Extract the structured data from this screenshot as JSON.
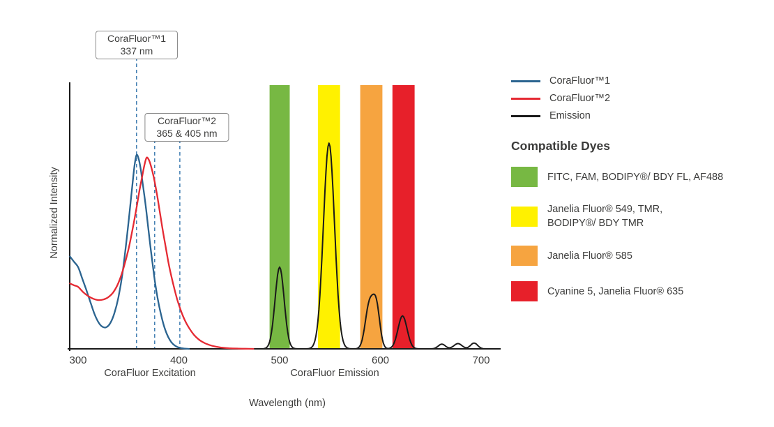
{
  "chart_data": {
    "type": "line",
    "title": "",
    "xlabel": "Wavelength (nm)",
    "ylabel": "Normalized Intensity",
    "x_ticks": [
      300,
      400,
      500,
      600,
      700
    ],
    "x_range_nm": [
      292,
      710
    ],
    "y_range": [
      0,
      1
    ],
    "grid": false,
    "axis_color": "#1A1A1A",
    "annotation_line_color": "#3E7CB1",
    "x_sublabels": {
      "excitation": "CoraFluor Excitation",
      "emission": "CoraFluor Emission"
    },
    "annotations": [
      {
        "title": "CoraFluor™1",
        "value": "337 nm",
        "lines_nm": [
          358
        ]
      },
      {
        "title": "CoraFluor™2",
        "value": "365 & 405 nm",
        "lines_nm": [
          376,
          401
        ]
      }
    ],
    "bands": [
      {
        "name": "green",
        "color": "#77B843",
        "from_nm": 490,
        "to_nm": 510
      },
      {
        "name": "yellow",
        "color": "#FFF100",
        "from_nm": 538,
        "to_nm": 560
      },
      {
        "name": "orange",
        "color": "#F6A440",
        "from_nm": 580,
        "to_nm": 602
      },
      {
        "name": "red",
        "color": "#E7202A",
        "from_nm": 612,
        "to_nm": 634
      }
    ],
    "series": [
      {
        "key": "corafluor1",
        "name": "CoraFluor™1",
        "color": "#2B6490",
        "points": [
          [
            292,
            0.35
          ],
          [
            296,
            0.33
          ],
          [
            300,
            0.31
          ],
          [
            304,
            0.268
          ],
          [
            308,
            0.225
          ],
          [
            312,
            0.18
          ],
          [
            316,
            0.135
          ],
          [
            320,
            0.102
          ],
          [
            324,
            0.084
          ],
          [
            328,
            0.082
          ],
          [
            332,
            0.098
          ],
          [
            336,
            0.135
          ],
          [
            340,
            0.195
          ],
          [
            344,
            0.285
          ],
          [
            348,
            0.41
          ],
          [
            351,
            0.515
          ],
          [
            354,
            0.625
          ],
          [
            356,
            0.695
          ],
          [
            358,
            0.735
          ],
          [
            360,
            0.722
          ],
          [
            362,
            0.685
          ],
          [
            364,
            0.63
          ],
          [
            367,
            0.545
          ],
          [
            370,
            0.445
          ],
          [
            373,
            0.35
          ],
          [
            376,
            0.262
          ],
          [
            379,
            0.19
          ],
          [
            382,
            0.135
          ],
          [
            385,
            0.09
          ],
          [
            388,
            0.057
          ],
          [
            391,
            0.034
          ],
          [
            394,
            0.019
          ],
          [
            398,
            0.008
          ],
          [
            402,
            0.003
          ],
          [
            406,
            0.001
          ],
          [
            410,
            0
          ]
        ]
      },
      {
        "key": "corafluor2",
        "name": "CoraFluor™2",
        "color": "#E52A33",
        "points": [
          [
            292,
            0.248
          ],
          [
            296,
            0.241
          ],
          [
            300,
            0.235
          ],
          [
            305,
            0.215
          ],
          [
            310,
            0.2
          ],
          [
            315,
            0.19
          ],
          [
            320,
            0.185
          ],
          [
            325,
            0.187
          ],
          [
            330,
            0.196
          ],
          [
            335,
            0.215
          ],
          [
            340,
            0.25
          ],
          [
            345,
            0.305
          ],
          [
            350,
            0.378
          ],
          [
            354,
            0.452
          ],
          [
            358,
            0.535
          ],
          [
            361,
            0.602
          ],
          [
            364,
            0.662
          ],
          [
            366,
            0.7
          ],
          [
            368,
            0.725
          ],
          [
            370,
            0.718
          ],
          [
            372,
            0.698
          ],
          [
            375,
            0.652
          ],
          [
            378,
            0.592
          ],
          [
            381,
            0.522
          ],
          [
            384,
            0.45
          ],
          [
            387,
            0.385
          ],
          [
            390,
            0.32
          ],
          [
            394,
            0.252
          ],
          [
            398,
            0.192
          ],
          [
            402,
            0.145
          ],
          [
            406,
            0.108
          ],
          [
            410,
            0.08
          ],
          [
            415,
            0.053
          ],
          [
            420,
            0.035
          ],
          [
            425,
            0.023
          ],
          [
            430,
            0.015
          ],
          [
            436,
            0.009
          ],
          [
            442,
            0.005
          ],
          [
            450,
            0.0025
          ],
          [
            458,
            0.0012
          ],
          [
            466,
            0.0005
          ],
          [
            474,
            0
          ]
        ]
      }
    ],
    "emission": {
      "name": "Emission",
      "color": "#1A1A1A",
      "range_nm": [
        484,
        706
      ],
      "peaks": [
        {
          "center_nm": 500,
          "amplitude": 0.31,
          "sigma_nm": 4.5
        },
        {
          "center_nm": 549,
          "amplitude": 0.78,
          "sigma_nm": 5.5
        },
        {
          "center_nm": 589,
          "amplitude": 0.165,
          "sigma_nm": 4
        },
        {
          "center_nm": 596,
          "amplitude": 0.155,
          "sigma_nm": 3.5
        },
        {
          "center_nm": 622,
          "amplitude": 0.125,
          "sigma_nm": 4.5
        },
        {
          "center_nm": 661,
          "amplitude": 0.018,
          "sigma_nm": 3.5
        },
        {
          "center_nm": 677,
          "amplitude": 0.02,
          "sigma_nm": 4
        },
        {
          "center_nm": 693,
          "amplitude": 0.022,
          "sigma_nm": 3.5
        }
      ]
    }
  },
  "legend": {
    "items": [
      {
        "label": "CoraFluor™1",
        "color": "#2B6490"
      },
      {
        "label": "CoraFluor™2",
        "color": "#E52A33"
      },
      {
        "label": "Emission",
        "color": "#1A1A1A"
      }
    ]
  },
  "dyes": {
    "heading": "Compatible Dyes",
    "items": [
      {
        "color": "#77B843",
        "lines": [
          "FITC, FAM, BODIPY®/ BDY FL, AF488"
        ]
      },
      {
        "color": "#FFF100",
        "lines": [
          "Janelia Fluor® 549, TMR,",
          "BODIPY®/ BDY TMR"
        ]
      },
      {
        "color": "#F6A440",
        "lines": [
          "Janelia Fluor® 585"
        ]
      },
      {
        "color": "#E7202A",
        "lines": [
          "Cyanine 5, Janelia Fluor® 635"
        ]
      }
    ]
  }
}
